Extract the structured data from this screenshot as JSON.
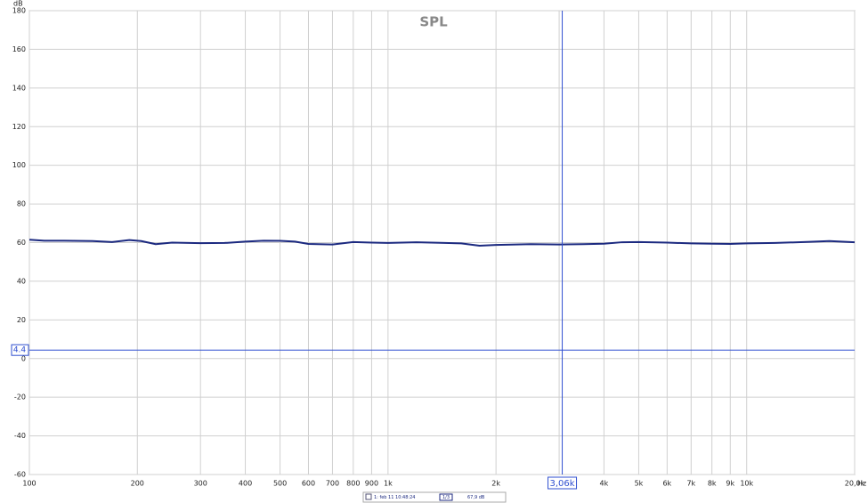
{
  "chart_data": {
    "type": "line",
    "title": "SPL",
    "x_label": "Hz",
    "y_label": "dB",
    "xscale": "log",
    "grid": true,
    "xlim": [
      100,
      20000
    ],
    "ylim": [
      -60,
      180
    ],
    "xticks": [
      100,
      200,
      300,
      400,
      500,
      600,
      700,
      800,
      900,
      {
        "value": 1000,
        "label": "1k"
      },
      {
        "value": 2000,
        "label": "2k"
      },
      {
        "value": 3000,
        "label": "3k"
      },
      {
        "value": 4000,
        "label": "4k"
      },
      {
        "value": 5000,
        "label": "5k"
      },
      {
        "value": 6000,
        "label": "6k"
      },
      {
        "value": 7000,
        "label": "7k"
      },
      {
        "value": 8000,
        "label": "8k"
      },
      {
        "value": 9000,
        "label": "9k"
      },
      {
        "value": 10000,
        "label": "10k"
      },
      {
        "value": 20000,
        "label": "20,0k"
      }
    ],
    "yticks": [
      -60,
      -40,
      -20,
      0,
      20,
      40,
      60,
      80,
      100,
      120,
      140,
      160,
      180
    ],
    "x": [
      100,
      110,
      125,
      150,
      170,
      190,
      205,
      225,
      250,
      300,
      350,
      400,
      450,
      500,
      550,
      600,
      700,
      800,
      900,
      1000,
      1200,
      1400,
      1600,
      1800,
      2000,
      2500,
      3000,
      3500,
      4000,
      4500,
      5000,
      6000,
      7000,
      8000,
      9000,
      10000,
      12000,
      15000,
      17000,
      20000
    ],
    "series": [
      {
        "name": "1: feb 11 10:48:24",
        "color": "#1c2a80",
        "values": [
          61.5,
          61,
          61,
          60.8,
          60.3,
          61.3,
          60.8,
          59.2,
          60,
          59.7,
          59.8,
          60.5,
          61,
          60.9,
          60.5,
          59.3,
          59,
          60.3,
          60,
          59.8,
          60.2,
          59.9,
          59.6,
          58.4,
          58.8,
          59.2,
          59,
          59.2,
          59.4,
          60.2,
          60.3,
          60,
          59.6,
          59.4,
          59.3,
          59.6,
          59.8,
          60.4,
          60.8,
          60.2
        ]
      }
    ],
    "cursor": {
      "color": "#2f4fd0",
      "x": {
        "value": 3060,
        "label": "3,06k"
      },
      "y": 4.4
    },
    "legend": {
      "smoothing": "1/3",
      "reading": "67,9 dB"
    }
  }
}
